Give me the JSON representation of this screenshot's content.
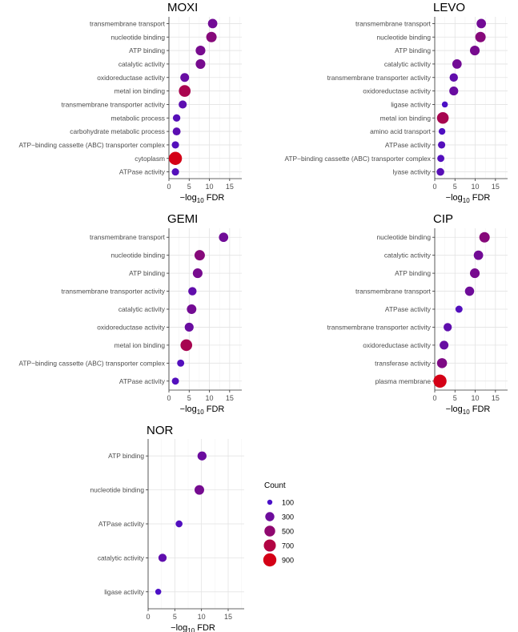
{
  "chart_data": [
    {
      "type": "scatter",
      "title": "MOXI",
      "xlabel_main": "−log",
      "xlabel_sub": "10",
      "xlabel_end": " FDR",
      "xlim": [
        0,
        18
      ],
      "xticks": [
        0,
        5,
        10,
        15
      ],
      "points": [
        {
          "term": "transmembrane transport",
          "x": 10.8,
          "count": 330
        },
        {
          "term": "nucleotide binding",
          "x": 10.5,
          "count": 450
        },
        {
          "term": "ATP binding",
          "x": 7.8,
          "count": 360
        },
        {
          "term": "catalytic activity",
          "x": 7.8,
          "count": 360
        },
        {
          "term": "oxidoreductase activity",
          "x": 3.9,
          "count": 270
        },
        {
          "term": "metal ion binding",
          "x": 3.9,
          "count": 650
        },
        {
          "term": "transmembrane transporter activity",
          "x": 3.4,
          "count": 210
        },
        {
          "term": "metabolic process",
          "x": 1.9,
          "count": 170
        },
        {
          "term": "carbohydrate metabolic process",
          "x": 1.9,
          "count": 200
        },
        {
          "term": "ATP−binding cassette (ABC) transporter complex",
          "x": 1.6,
          "count": 160
        },
        {
          "term": "cytoplasm",
          "x": 1.6,
          "count": 900
        },
        {
          "term": "ATPase activity",
          "x": 1.6,
          "count": 160
        }
      ]
    },
    {
      "type": "scatter",
      "title": "LEVO",
      "xlabel_main": "−log",
      "xlabel_sub": "10",
      "xlabel_end": " FDR",
      "xlim": [
        0,
        18
      ],
      "xticks": [
        0,
        5,
        10,
        15
      ],
      "points": [
        {
          "term": "transmembrane transport",
          "x": 11.5,
          "count": 330
        },
        {
          "term": "nucleotide binding",
          "x": 11.3,
          "count": 450
        },
        {
          "term": "ATP binding",
          "x": 9.9,
          "count": 360
        },
        {
          "term": "catalytic activity",
          "x": 5.5,
          "count": 330
        },
        {
          "term": "transmembrane transporter activity",
          "x": 4.7,
          "count": 230
        },
        {
          "term": "oxidoreductase activity",
          "x": 4.7,
          "count": 280
        },
        {
          "term": "ligase activity",
          "x": 2.5,
          "count": 110
        },
        {
          "term": "metal ion binding",
          "x": 2.0,
          "count": 640
        },
        {
          "term": "amino acid transport",
          "x": 1.8,
          "count": 130
        },
        {
          "term": "ATPase activity",
          "x": 1.7,
          "count": 160
        },
        {
          "term": "ATP−binding cassette (ABC) transporter complex",
          "x": 1.5,
          "count": 150
        },
        {
          "term": "lyase activity",
          "x": 1.4,
          "count": 180
        }
      ]
    },
    {
      "type": "scatter",
      "title": "GEMI",
      "xlabel_main": "−log",
      "xlabel_sub": "10",
      "xlabel_end": " FDR",
      "xlim": [
        0,
        18
      ],
      "xticks": [
        0,
        5,
        10,
        15
      ],
      "points": [
        {
          "term": "transmembrane transport",
          "x": 13.5,
          "count": 320
        },
        {
          "term": "nucleotide binding",
          "x": 7.6,
          "count": 450
        },
        {
          "term": "ATP binding",
          "x": 7.1,
          "count": 360
        },
        {
          "term": "transmembrane transporter activity",
          "x": 5.8,
          "count": 230
        },
        {
          "term": "catalytic activity",
          "x": 5.6,
          "count": 340
        },
        {
          "term": "oxidoreductase activity",
          "x": 5.0,
          "count": 280
        },
        {
          "term": "metal ion binding",
          "x": 4.3,
          "count": 640
        },
        {
          "term": "ATP−binding cassette (ABC) transporter complex",
          "x": 2.9,
          "count": 150
        },
        {
          "term": "ATPase activity",
          "x": 1.6,
          "count": 150
        }
      ]
    },
    {
      "type": "scatter",
      "title": "CIP",
      "xlabel_main": "−log",
      "xlabel_sub": "10",
      "xlabel_end": " FDR",
      "xlim": [
        0,
        18
      ],
      "xticks": [
        0,
        5,
        10,
        15
      ],
      "points": [
        {
          "term": "nucleotide binding",
          "x": 12.3,
          "count": 450
        },
        {
          "term": "catalytic activity",
          "x": 10.8,
          "count": 330
        },
        {
          "term": "ATP binding",
          "x": 9.9,
          "count": 360
        },
        {
          "term": "transmembrane transport",
          "x": 8.6,
          "count": 310
        },
        {
          "term": "ATPase activity",
          "x": 6.0,
          "count": 150
        },
        {
          "term": "transmembrane transporter activity",
          "x": 3.2,
          "count": 220
        },
        {
          "term": "oxidoreductase activity",
          "x": 2.3,
          "count": 270
        },
        {
          "term": "transferase activity",
          "x": 1.8,
          "count": 400
        },
        {
          "term": "plasma membrane",
          "x": 1.3,
          "count": 900
        }
      ]
    },
    {
      "type": "scatter",
      "title": "NOR",
      "xlabel_main": "−log",
      "xlabel_sub": "10",
      "xlabel_end": " FDR",
      "xlim": [
        0,
        18
      ],
      "xticks": [
        0,
        5,
        10,
        15
      ],
      "points": [
        {
          "term": "ATP binding",
          "x": 10.1,
          "count": 290
        },
        {
          "term": "nucleotide binding",
          "x": 9.6,
          "count": 350
        },
        {
          "term": "ATPase activity",
          "x": 5.8,
          "count": 140
        },
        {
          "term": "catalytic activity",
          "x": 2.7,
          "count": 220
        },
        {
          "term": "ligase activity",
          "x": 1.9,
          "count": 110
        }
      ]
    }
  ],
  "legend": {
    "title": "Count",
    "entries": [
      100,
      300,
      500,
      700,
      900
    ],
    "color_low": "#4a10c8",
    "color_high": "#d40016",
    "count_min": 100,
    "count_max": 900
  }
}
